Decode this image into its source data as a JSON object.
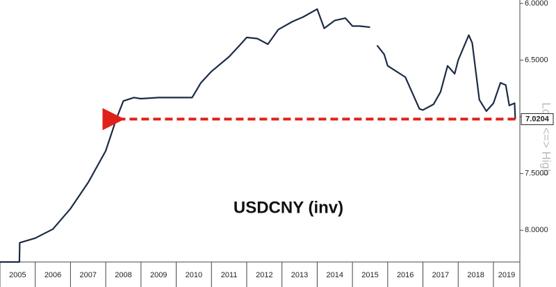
{
  "chart_data": {
    "type": "line",
    "title": "USDCNY (inv)",
    "axis_note": "Low <=> High",
    "series": [
      {
        "name": "USDCNY",
        "color": "#1b2a44",
        "x": [
          2005.0,
          2005.55,
          2005.56,
          2006.0,
          2006.5,
          2007.0,
          2007.5,
          2008.0,
          2008.3,
          2008.5,
          2008.8,
          2009.0,
          2009.5,
          2010.0,
          2010.45,
          2010.7,
          2011.0,
          2011.5,
          2011.8,
          2012.0,
          2012.3,
          2012.6,
          2012.9,
          2013.3,
          2013.6,
          2014.0,
          2014.2,
          2014.5,
          2014.8,
          2015.0,
          2015.2,
          2015.5,
          2015.58,
          2015.7,
          2015.9,
          2016.0,
          2016.5,
          2016.9,
          2017.0,
          2017.3,
          2017.5,
          2017.7,
          2017.9,
          2018.0,
          2018.3,
          2018.4,
          2018.6,
          2018.8,
          2019.0,
          2019.2,
          2019.35,
          2019.45,
          2019.6,
          2019.62
        ],
        "values": [
          8.28,
          8.28,
          8.11,
          8.07,
          7.99,
          7.81,
          7.58,
          7.3,
          7.02,
          6.86,
          6.83,
          6.84,
          6.83,
          6.83,
          6.83,
          6.7,
          6.6,
          6.47,
          6.37,
          6.3,
          6.31,
          6.36,
          6.23,
          6.16,
          6.12,
          6.05,
          6.22,
          6.15,
          6.13,
          6.2,
          6.2,
          6.21,
          null,
          6.37,
          6.45,
          6.55,
          6.65,
          6.93,
          6.94,
          6.89,
          6.78,
          6.55,
          6.62,
          6.5,
          6.28,
          6.35,
          6.85,
          6.95,
          6.88,
          6.7,
          6.72,
          6.9,
          6.88,
          7.02
        ]
      }
    ],
    "reference_line": {
      "value": 7.0204,
      "from": 2008.3,
      "to": 2019.62,
      "color": "#e0201b"
    },
    "xlim": [
      2005,
      2019.75
    ],
    "xticks": [
      2005,
      2006,
      2007,
      2008,
      2009,
      2010,
      2011,
      2012,
      2013,
      2014,
      2015,
      2016,
      2017,
      2018,
      2019
    ],
    "ylim": [
      5.97,
      8.28
    ],
    "inverted": true,
    "yticks": [
      {
        "value": 6.0,
        "label": "6.0000"
      },
      {
        "value": 6.5,
        "label": "6.5000"
      },
      {
        "value": 7.0,
        "label": "7.0000"
      },
      {
        "value": 7.5,
        "label": "7.5000"
      },
      {
        "value": 8.0,
        "label": "8.0000"
      }
    ]
  }
}
